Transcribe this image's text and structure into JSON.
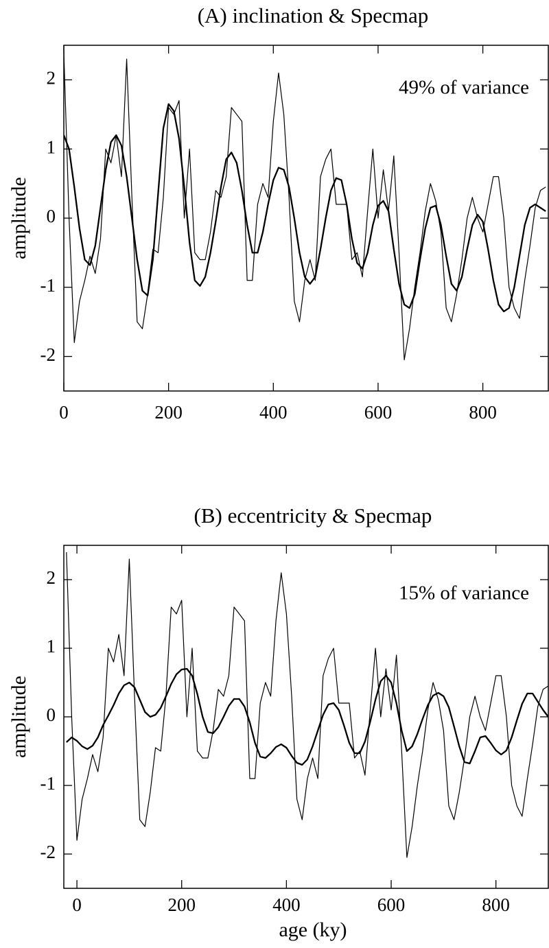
{
  "chart_data": [
    {
      "type": "line",
      "title": "(A) inclination & Specmap",
      "annotation": "49% of variance",
      "y_label": "amplitude",
      "xlim": [
        0,
        925
      ],
      "ylim": [
        -2.5,
        2.5
      ],
      "xticks": [
        0,
        200,
        400,
        600,
        800
      ],
      "yticks": [
        -2,
        -1,
        0,
        1,
        2
      ],
      "x": [
        0,
        10,
        20,
        30,
        40,
        50,
        60,
        70,
        80,
        90,
        100,
        110,
        120,
        130,
        140,
        150,
        160,
        170,
        180,
        190,
        200,
        210,
        220,
        230,
        240,
        250,
        260,
        270,
        280,
        290,
        300,
        310,
        320,
        330,
        340,
        350,
        360,
        370,
        380,
        390,
        400,
        410,
        420,
        430,
        440,
        450,
        460,
        470,
        480,
        490,
        500,
        510,
        520,
        530,
        540,
        550,
        560,
        570,
        580,
        590,
        600,
        610,
        620,
        630,
        640,
        650,
        660,
        670,
        680,
        690,
        700,
        710,
        720,
        730,
        740,
        750,
        760,
        770,
        780,
        790,
        800,
        810,
        820,
        830,
        840,
        850,
        860,
        870,
        880,
        890,
        900,
        910,
        920
      ],
      "series": [
        {
          "color": "#000000",
          "values": [
            2.4,
            0.0,
            -1.8,
            -1.2,
            -0.9,
            -0.55,
            -0.8,
            -0.3,
            1.0,
            0.8,
            1.2,
            0.6,
            2.3,
            0.3,
            -1.5,
            -1.6,
            -1.1,
            -0.45,
            -0.5,
            0.3,
            1.6,
            1.5,
            1.7,
            0.0,
            1.0,
            -0.5,
            -0.6,
            -0.6,
            -0.2,
            0.4,
            0.3,
            0.6,
            1.6,
            1.5,
            1.4,
            -0.9,
            -0.9,
            0.2,
            0.5,
            0.3,
            1.4,
            2.1,
            1.5,
            0.3,
            -1.2,
            -1.5,
            -0.9,
            -0.6,
            -0.9,
            0.6,
            0.85,
            1.0,
            0.2,
            0.2,
            0.2,
            -0.6,
            -0.5,
            -0.85,
            0.1,
            1.0,
            0.0,
            0.7,
            0.1,
            0.9,
            -0.5,
            -2.05,
            -1.6,
            -1.0,
            -0.5,
            0.1,
            0.5,
            0.25,
            -0.2,
            -1.3,
            -1.5,
            -1.1,
            -0.6,
            0.0,
            0.3,
            0.0,
            -0.2,
            0.2,
            0.6,
            0.6,
            0.0,
            -1.0,
            -1.3,
            -1.45,
            -0.9,
            -0.4,
            0.15,
            0.4,
            0.45
          ]
        },
        {
          "color": "#000000",
          "values": [
            1.2,
            1.0,
            0.45,
            -0.15,
            -0.6,
            -0.68,
            -0.4,
            0.15,
            0.7,
            1.1,
            1.2,
            1.05,
            0.6,
            0.0,
            -0.6,
            -1.05,
            -1.12,
            -0.6,
            0.35,
            1.3,
            1.65,
            1.55,
            1.15,
            0.45,
            -0.35,
            -0.9,
            -0.98,
            -0.85,
            -0.5,
            -0.05,
            0.45,
            0.85,
            0.95,
            0.8,
            0.4,
            -0.1,
            -0.5,
            -0.5,
            -0.2,
            0.2,
            0.55,
            0.73,
            0.7,
            0.45,
            0.0,
            -0.5,
            -0.85,
            -0.95,
            -0.85,
            -0.45,
            0.0,
            0.4,
            0.58,
            0.55,
            0.2,
            -0.3,
            -0.65,
            -0.73,
            -0.5,
            -0.1,
            0.18,
            0.25,
            0.1,
            -0.45,
            -0.95,
            -1.25,
            -1.3,
            -1.1,
            -0.6,
            -0.15,
            0.15,
            0.18,
            -0.1,
            -0.55,
            -0.95,
            -1.05,
            -0.85,
            -0.45,
            -0.1,
            0.05,
            -0.05,
            -0.45,
            -0.9,
            -1.25,
            -1.35,
            -1.3,
            -1.0,
            -0.55,
            -0.1,
            0.15,
            0.2,
            0.15,
            0.1
          ]
        }
      ]
    },
    {
      "type": "line",
      "title": "(B) eccentricity & Specmap",
      "annotation": "15% of variance",
      "y_label": "amplitude",
      "x_label": "age (ky)",
      "xlim": [
        -25,
        900
      ],
      "ylim": [
        -2.5,
        2.5
      ],
      "xticks": [
        0,
        200,
        400,
        600,
        800
      ],
      "yticks": [
        -2,
        -1,
        0,
        1,
        2
      ],
      "x": [
        -20,
        -10,
        0,
        10,
        20,
        30,
        40,
        50,
        60,
        70,
        80,
        90,
        100,
        110,
        120,
        130,
        140,
        150,
        160,
        170,
        180,
        190,
        200,
        210,
        220,
        230,
        240,
        250,
        260,
        270,
        280,
        290,
        300,
        310,
        320,
        330,
        340,
        350,
        360,
        370,
        380,
        390,
        400,
        410,
        420,
        430,
        440,
        450,
        460,
        470,
        480,
        490,
        500,
        510,
        520,
        530,
        540,
        550,
        560,
        570,
        580,
        590,
        600,
        610,
        620,
        630,
        640,
        650,
        660,
        670,
        680,
        690,
        700,
        710,
        720,
        730,
        740,
        750,
        760,
        770,
        780,
        790,
        800,
        810,
        820,
        830,
        840,
        850,
        860,
        870,
        880,
        890,
        900
      ],
      "series": [
        {
          "color": "#000000",
          "values": [
            2.4,
            0.0,
            -1.8,
            -1.2,
            -0.9,
            -0.55,
            -0.8,
            -0.3,
            1.0,
            0.8,
            1.2,
            0.6,
            2.3,
            0.3,
            -1.5,
            -1.6,
            -1.1,
            -0.45,
            -0.5,
            0.3,
            1.6,
            1.5,
            1.7,
            0.0,
            1.0,
            -0.5,
            -0.6,
            -0.6,
            -0.2,
            0.4,
            0.3,
            0.6,
            1.6,
            1.5,
            1.4,
            -0.9,
            -0.9,
            0.2,
            0.5,
            0.3,
            1.4,
            2.1,
            1.5,
            0.3,
            -1.2,
            -1.5,
            -0.9,
            -0.6,
            -0.9,
            0.6,
            0.85,
            1.0,
            0.2,
            0.2,
            0.2,
            -0.6,
            -0.5,
            -0.85,
            0.1,
            1.0,
            0.0,
            0.7,
            0.1,
            0.9,
            -0.5,
            -2.05,
            -1.6,
            -1.0,
            -0.5,
            0.1,
            0.5,
            0.25,
            -0.2,
            -1.3,
            -1.5,
            -1.1,
            -0.6,
            0.0,
            0.3,
            0.0,
            -0.2,
            0.2,
            0.6,
            0.6,
            0.0,
            -1.0,
            -1.3,
            -1.45,
            -0.9,
            -0.4,
            0.15,
            0.4,
            0.45
          ]
        },
        {
          "color": "#000000",
          "values": [
            -0.37,
            -0.3,
            -0.35,
            -0.43,
            -0.47,
            -0.42,
            -0.3,
            -0.12,
            0.02,
            0.17,
            0.34,
            0.46,
            0.5,
            0.43,
            0.25,
            0.07,
            0.0,
            0.03,
            0.13,
            0.3,
            0.48,
            0.62,
            0.69,
            0.7,
            0.6,
            0.33,
            0.0,
            -0.22,
            -0.24,
            -0.15,
            0.0,
            0.16,
            0.26,
            0.26,
            0.15,
            -0.08,
            -0.38,
            -0.58,
            -0.6,
            -0.53,
            -0.44,
            -0.4,
            -0.45,
            -0.57,
            -0.67,
            -0.7,
            -0.62,
            -0.43,
            -0.2,
            0.03,
            0.18,
            0.2,
            0.1,
            -0.13,
            -0.38,
            -0.53,
            -0.53,
            -0.36,
            -0.07,
            0.25,
            0.52,
            0.6,
            0.5,
            0.2,
            -0.2,
            -0.5,
            -0.43,
            -0.25,
            -0.03,
            0.17,
            0.31,
            0.35,
            0.3,
            0.14,
            -0.14,
            -0.43,
            -0.66,
            -0.68,
            -0.5,
            -0.3,
            -0.28,
            -0.38,
            -0.49,
            -0.55,
            -0.49,
            -0.3,
            -0.05,
            0.19,
            0.34,
            0.34,
            0.22,
            0.1,
            0.0
          ]
        }
      ]
    }
  ]
}
